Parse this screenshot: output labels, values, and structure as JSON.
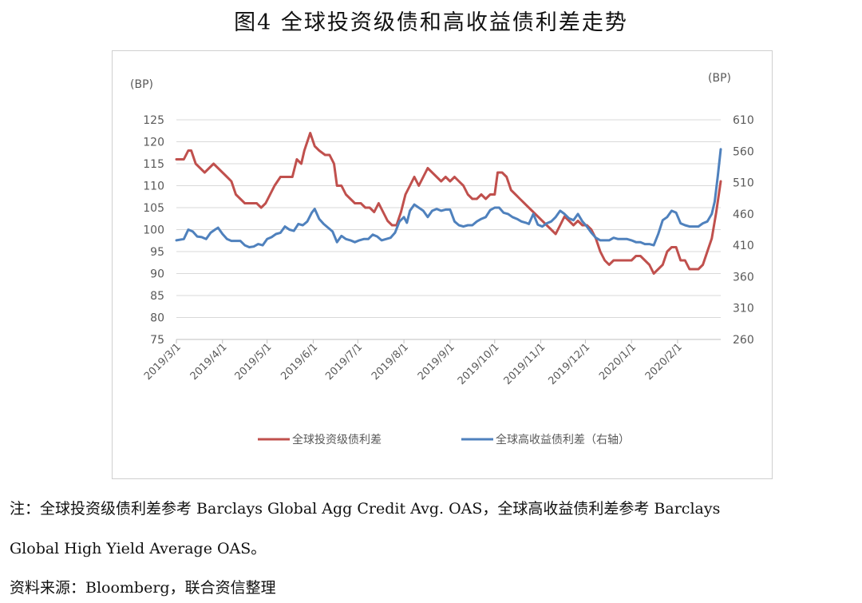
{
  "figure": {
    "title": "图4 全球投资级债和高收益债利差走势",
    "note_line1": "注：全球投资级债利差参考 Barclays Global Agg Credit Avg. OAS，全球高收益债利差参考 Barclays",
    "note_line2": "Global High Yield Average OAS。",
    "source": "资料来源：Bloomberg，联合资信整理"
  },
  "colors": {
    "series1": "#C0504D",
    "series2": "#4F81BD",
    "grid": "#d9d9d9",
    "axis_text": "#595959"
  },
  "chart_data": {
    "type": "line",
    "y_left_unit": "(BP)",
    "y_right_unit": "(BP)",
    "ylim_left": [
      75,
      125
    ],
    "ylim_right": [
      260,
      610
    ],
    "yticks_left": [
      "125",
      "120",
      "115",
      "110",
      "105",
      "100",
      "95",
      "90",
      "85",
      "80",
      "75"
    ],
    "yticks_right": [
      "610",
      "560",
      "510",
      "460",
      "410",
      "360",
      "310",
      "260"
    ],
    "grid": true,
    "legend_position": "bottom",
    "x_ticks": [
      {
        "label": "2019/3/1",
        "day": 0
      },
      {
        "label": "2019/4/1",
        "day": 31
      },
      {
        "label": "2019/5/1",
        "day": 61
      },
      {
        "label": "2019/6/1",
        "day": 92
      },
      {
        "label": "2019/7/1",
        "day": 122
      },
      {
        "label": "2019/8/1",
        "day": 153
      },
      {
        "label": "2019/9/1",
        "day": 184
      },
      {
        "label": "2019/10/1",
        "day": 214
      },
      {
        "label": "2019/11/1",
        "day": 245
      },
      {
        "label": "2019/12/1",
        "day": 275
      },
      {
        "label": "2020/1/1",
        "day": 306
      },
      {
        "label": "2020/2/1",
        "day": 337
      }
    ],
    "x_max_day": 366,
    "series": [
      {
        "name": "全球投资级债利差",
        "axis": "left",
        "points": [
          [
            0,
            116
          ],
          [
            5,
            116
          ],
          [
            8,
            118
          ],
          [
            10,
            118
          ],
          [
            13,
            115
          ],
          [
            16,
            114
          ],
          [
            19,
            113
          ],
          [
            22,
            114
          ],
          [
            25,
            115
          ],
          [
            28,
            114
          ],
          [
            31,
            113
          ],
          [
            34,
            112
          ],
          [
            37,
            111
          ],
          [
            40,
            108
          ],
          [
            43,
            107
          ],
          [
            46,
            106
          ],
          [
            50,
            106
          ],
          [
            54,
            106
          ],
          [
            57,
            105
          ],
          [
            60,
            106
          ],
          [
            63,
            108
          ],
          [
            66,
            110
          ],
          [
            70,
            112
          ],
          [
            74,
            112
          ],
          [
            78,
            112
          ],
          [
            81,
            116
          ],
          [
            84,
            115
          ],
          [
            86,
            118
          ],
          [
            88,
            120
          ],
          [
            90,
            122
          ],
          [
            93,
            119
          ],
          [
            96,
            118
          ],
          [
            100,
            117
          ],
          [
            103,
            117
          ],
          [
            106,
            115
          ],
          [
            108,
            110
          ],
          [
            111,
            110
          ],
          [
            114,
            108
          ],
          [
            117,
            107
          ],
          [
            120,
            106
          ],
          [
            124,
            106
          ],
          [
            127,
            105
          ],
          [
            130,
            105
          ],
          [
            133,
            104
          ],
          [
            136,
            106
          ],
          [
            139,
            104
          ],
          [
            142,
            102
          ],
          [
            145,
            101
          ],
          [
            148,
            101
          ],
          [
            151,
            104
          ],
          [
            154,
            108
          ],
          [
            157,
            110
          ],
          [
            160,
            112
          ],
          [
            163,
            110
          ],
          [
            166,
            112
          ],
          [
            169,
            114
          ],
          [
            172,
            113
          ],
          [
            175,
            112
          ],
          [
            178,
            111
          ],
          [
            181,
            112
          ],
          [
            184,
            111
          ],
          [
            187,
            112
          ],
          [
            190,
            111
          ],
          [
            193,
            110
          ],
          [
            196,
            108
          ],
          [
            199,
            107
          ],
          [
            202,
            107
          ],
          [
            205,
            108
          ],
          [
            208,
            107
          ],
          [
            211,
            108
          ],
          [
            214,
            108
          ],
          [
            216,
            113
          ],
          [
            219,
            113
          ],
          [
            222,
            112
          ],
          [
            225,
            109
          ],
          [
            228,
            108
          ],
          [
            231,
            107
          ],
          [
            234,
            106
          ],
          [
            237,
            105
          ],
          [
            240,
            104
          ],
          [
            243,
            103
          ],
          [
            246,
            102
          ],
          [
            249,
            101
          ],
          [
            252,
            100
          ],
          [
            255,
            99
          ],
          [
            258,
            101
          ],
          [
            261,
            103
          ],
          [
            264,
            102
          ],
          [
            267,
            101
          ],
          [
            270,
            102
          ],
          [
            273,
            101
          ],
          [
            276,
            101
          ],
          [
            279,
            100
          ],
          [
            282,
            98
          ],
          [
            285,
            95
          ],
          [
            288,
            93
          ],
          [
            291,
            92
          ],
          [
            294,
            93
          ],
          [
            297,
            93
          ],
          [
            300,
            93
          ],
          [
            303,
            93
          ],
          [
            306,
            93
          ],
          [
            309,
            94
          ],
          [
            312,
            94
          ],
          [
            315,
            93
          ],
          [
            318,
            92
          ],
          [
            321,
            90
          ],
          [
            324,
            91
          ],
          [
            327,
            92
          ],
          [
            330,
            95
          ],
          [
            333,
            96
          ],
          [
            336,
            96
          ],
          [
            339,
            93
          ],
          [
            342,
            93
          ],
          [
            345,
            91
          ],
          [
            348,
            91
          ],
          [
            351,
            91
          ],
          [
            354,
            92
          ],
          [
            357,
            95
          ],
          [
            360,
            98
          ],
          [
            363,
            104
          ],
          [
            366,
            111
          ]
        ]
      },
      {
        "name": "全球高收益债利差（右轴）",
        "axis": "right",
        "points": [
          [
            0,
            418
          ],
          [
            5,
            420
          ],
          [
            8,
            435
          ],
          [
            11,
            432
          ],
          [
            14,
            424
          ],
          [
            17,
            423
          ],
          [
            20,
            420
          ],
          [
            23,
            430
          ],
          [
            26,
            435
          ],
          [
            28,
            438
          ],
          [
            31,
            428
          ],
          [
            34,
            420
          ],
          [
            37,
            417
          ],
          [
            40,
            417
          ],
          [
            43,
            417
          ],
          [
            46,
            410
          ],
          [
            49,
            407
          ],
          [
            52,
            408
          ],
          [
            55,
            412
          ],
          [
            58,
            410
          ],
          [
            61,
            420
          ],
          [
            64,
            423
          ],
          [
            67,
            428
          ],
          [
            70,
            430
          ],
          [
            73,
            440
          ],
          [
            76,
            435
          ],
          [
            79,
            433
          ],
          [
            82,
            444
          ],
          [
            85,
            442
          ],
          [
            88,
            448
          ],
          [
            91,
            462
          ],
          [
            93,
            468
          ],
          [
            96,
            452
          ],
          [
            99,
            444
          ],
          [
            102,
            438
          ],
          [
            105,
            432
          ],
          [
            108,
            415
          ],
          [
            111,
            425
          ],
          [
            114,
            420
          ],
          [
            117,
            418
          ],
          [
            120,
            415
          ],
          [
            123,
            418
          ],
          [
            126,
            420
          ],
          [
            129,
            420
          ],
          [
            132,
            427
          ],
          [
            135,
            424
          ],
          [
            138,
            418
          ],
          [
            141,
            420
          ],
          [
            144,
            422
          ],
          [
            147,
            430
          ],
          [
            150,
            448
          ],
          [
            153,
            455
          ],
          [
            155,
            446
          ],
          [
            157,
            465
          ],
          [
            160,
            475
          ],
          [
            163,
            470
          ],
          [
            166,
            465
          ],
          [
            169,
            455
          ],
          [
            172,
            465
          ],
          [
            175,
            468
          ],
          [
            178,
            465
          ],
          [
            181,
            467
          ],
          [
            184,
            467
          ],
          [
            187,
            448
          ],
          [
            190,
            442
          ],
          [
            193,
            440
          ],
          [
            196,
            442
          ],
          [
            199,
            442
          ],
          [
            202,
            448
          ],
          [
            205,
            452
          ],
          [
            208,
            455
          ],
          [
            211,
            466
          ],
          [
            214,
            470
          ],
          [
            217,
            470
          ],
          [
            220,
            462
          ],
          [
            223,
            460
          ],
          [
            226,
            455
          ],
          [
            229,
            452
          ],
          [
            232,
            448
          ],
          [
            235,
            446
          ],
          [
            237,
            444
          ],
          [
            240,
            460
          ],
          [
            243,
            443
          ],
          [
            246,
            440
          ],
          [
            249,
            445
          ],
          [
            252,
            448
          ],
          [
            255,
            455
          ],
          [
            258,
            465
          ],
          [
            261,
            460
          ],
          [
            264,
            453
          ],
          [
            267,
            450
          ],
          [
            270,
            460
          ],
          [
            273,
            448
          ],
          [
            276,
            440
          ],
          [
            279,
            430
          ],
          [
            282,
            422
          ],
          [
            285,
            418
          ],
          [
            288,
            418
          ],
          [
            291,
            418
          ],
          [
            294,
            422
          ],
          [
            297,
            420
          ],
          [
            300,
            420
          ],
          [
            303,
            420
          ],
          [
            306,
            418
          ],
          [
            309,
            415
          ],
          [
            312,
            415
          ],
          [
            315,
            412
          ],
          [
            318,
            412
          ],
          [
            321,
            410
          ],
          [
            324,
            428
          ],
          [
            327,
            450
          ],
          [
            330,
            455
          ],
          [
            333,
            465
          ],
          [
            336,
            462
          ],
          [
            339,
            445
          ],
          [
            342,
            442
          ],
          [
            345,
            440
          ],
          [
            348,
            440
          ],
          [
            351,
            440
          ],
          [
            354,
            445
          ],
          [
            357,
            448
          ],
          [
            360,
            460
          ],
          [
            362,
            480
          ],
          [
            364,
            520
          ],
          [
            366,
            563
          ]
        ]
      }
    ]
  }
}
